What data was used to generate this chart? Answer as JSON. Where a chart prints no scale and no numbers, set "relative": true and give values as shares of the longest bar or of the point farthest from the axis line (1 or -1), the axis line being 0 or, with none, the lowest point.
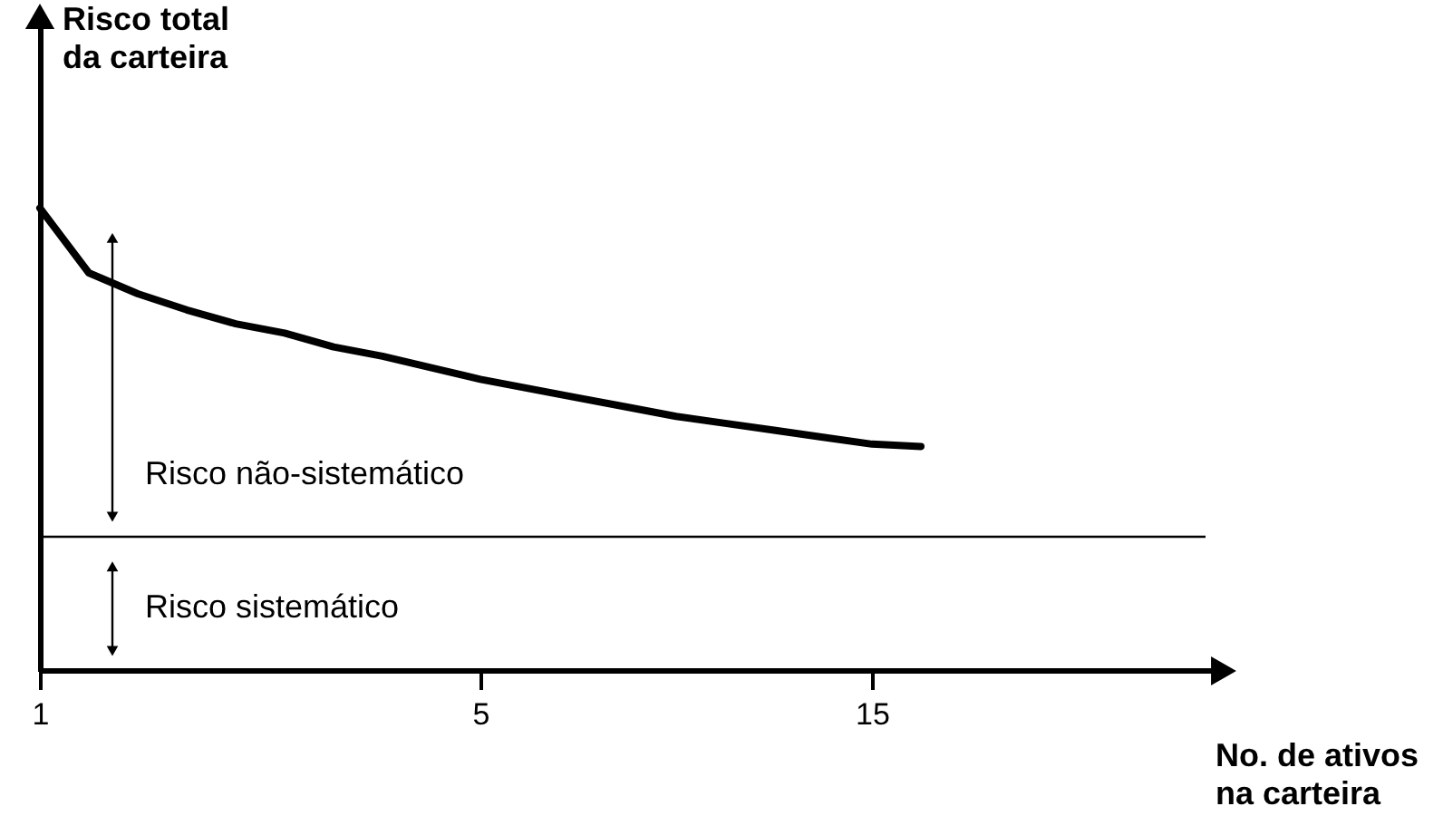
{
  "chart_data": {
    "type": "line",
    "relative": true,
    "ylabel": "Risco total\nda carteira",
    "xlabel": "No. de ativos\nna carteira",
    "categories": [
      "1",
      null,
      null,
      null,
      null,
      null,
      null,
      null,
      null,
      "5",
      null,
      null,
      null,
      null,
      null,
      null,
      null,
      "15",
      null,
      null,
      null,
      null,
      null,
      null,
      null
    ],
    "series": [
      {
        "color": "#000000",
        "values": [
          1.0,
          0.86,
          0.815,
          0.78,
          0.75,
          0.73,
          0.7,
          0.68,
          0.655,
          0.63,
          0.61,
          0.59,
          0.57,
          0.55,
          0.535,
          0.52,
          0.505,
          0.49,
          0.485,
          null,
          null,
          null,
          null,
          null,
          null
        ]
      }
    ],
    "ref_lines": [
      {
        "axis": "y",
        "value": 0.29,
        "label": null,
        "color": "#000000"
      }
    ],
    "annotations": [
      "Risco não-sistemático",
      "Risco sistemático"
    ],
    "grid": false,
    "marker": "none",
    "line_style": "solid"
  }
}
